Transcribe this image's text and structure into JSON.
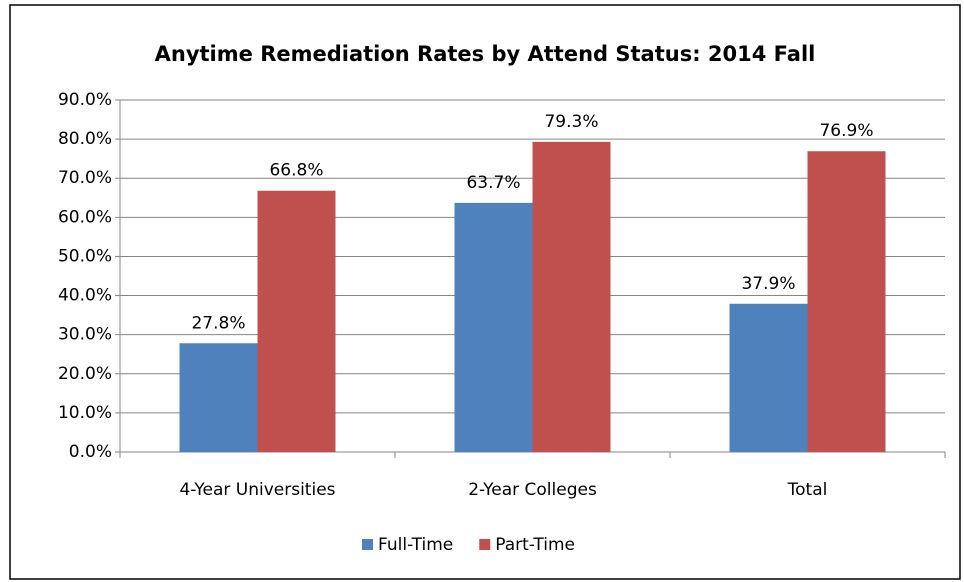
{
  "chart_data": {
    "type": "bar",
    "title": "Anytime Remediation Rates by Attend Status: 2014 Fall",
    "categories": [
      "4-Year Universities",
      "2-Year Colleges",
      "Total"
    ],
    "series": [
      {
        "name": "Full-Time",
        "color": "#4f81bd",
        "values": [
          27.8,
          63.7,
          37.9
        ],
        "value_labels": [
          "27.8%",
          "63.7%",
          "37.9%"
        ]
      },
      {
        "name": "Part-Time",
        "color": "#c0504d",
        "values": [
          66.8,
          79.3,
          76.9
        ],
        "value_labels": [
          "66.8%",
          "79.3%",
          "76.9%"
        ]
      }
    ],
    "ylim": [
      0,
      90
    ],
    "yticks": [
      {
        "value": 0,
        "label": "0.0%"
      },
      {
        "value": 10,
        "label": "10.0%"
      },
      {
        "value": 20,
        "label": "20.0%"
      },
      {
        "value": 30,
        "label": "30.0%"
      },
      {
        "value": 40,
        "label": "40.0%"
      },
      {
        "value": 50,
        "label": "50.0%"
      },
      {
        "value": 60,
        "label": "60.0%"
      },
      {
        "value": 70,
        "label": "70.0%"
      },
      {
        "value": 80,
        "label": "80.0%"
      },
      {
        "value": 90,
        "label": "90.0%"
      }
    ],
    "grid": true,
    "legend": "bottom"
  }
}
